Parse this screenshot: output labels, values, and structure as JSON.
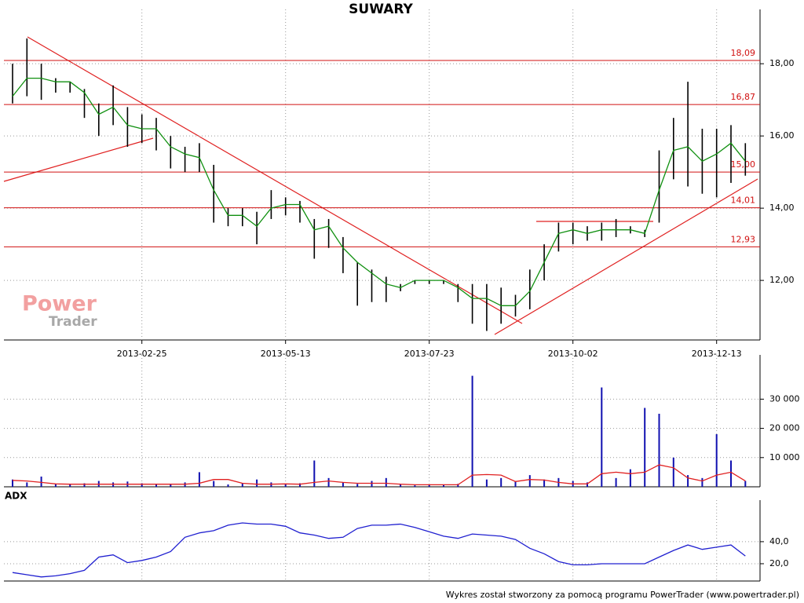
{
  "chart_data": [
    {
      "type": "hilo",
      "title": "SUWARY",
      "categories": [
        null,
        null,
        null,
        null,
        null,
        null,
        null,
        null,
        null,
        "2013-02-25",
        null,
        null,
        null,
        null,
        null,
        null,
        null,
        null,
        null,
        "2013-05-13",
        null,
        null,
        null,
        null,
        null,
        null,
        null,
        null,
        null,
        "2013-07-23",
        null,
        null,
        null,
        null,
        null,
        null,
        null,
        null,
        null,
        "2013-10-02",
        null,
        null,
        null,
        null,
        null,
        null,
        null,
        null,
        null,
        "2013-12-13",
        null,
        null
      ],
      "high": [
        18.0,
        18.7,
        18.0,
        17.6,
        17.5,
        17.3,
        16.9,
        17.4,
        16.8,
        16.6,
        16.5,
        16.0,
        15.7,
        15.8,
        15.2,
        14.0,
        14.0,
        13.9,
        14.5,
        14.3,
        14.2,
        13.7,
        13.7,
        13.2,
        12.5,
        12.3,
        12.1,
        11.9,
        12.0,
        12.0,
        12.0,
        11.9,
        11.9,
        11.9,
        11.8,
        11.6,
        12.3,
        13.0,
        13.6,
        13.6,
        13.5,
        13.6,
        13.7,
        13.5,
        13.4,
        15.6,
        16.5,
        17.5,
        16.2,
        16.2,
        16.3,
        15.8
      ],
      "low": [
        16.9,
        17.1,
        17.0,
        17.2,
        17.2,
        16.5,
        16.0,
        16.3,
        15.7,
        15.8,
        15.6,
        15.1,
        15.0,
        15.0,
        13.6,
        13.5,
        13.5,
        13.0,
        13.7,
        13.8,
        13.6,
        12.6,
        12.9,
        12.2,
        11.3,
        11.4,
        11.4,
        11.7,
        11.9,
        11.9,
        11.9,
        11.4,
        10.8,
        10.6,
        10.8,
        11.0,
        11.2,
        12.0,
        12.8,
        13.0,
        13.1,
        13.1,
        13.2,
        13.3,
        13.2,
        13.6,
        14.8,
        14.6,
        14.4,
        14.3,
        14.7,
        14.9
      ],
      "color": "#000000",
      "ma": {
        "color": "#109010",
        "values": [
          17.1,
          17.6,
          17.6,
          17.5,
          17.5,
          17.2,
          16.6,
          16.8,
          16.3,
          16.2,
          16.2,
          15.7,
          15.5,
          15.4,
          14.5,
          13.8,
          13.8,
          13.5,
          14.0,
          14.1,
          14.1,
          13.4,
          13.5,
          12.9,
          12.5,
          12.2,
          11.9,
          11.8,
          12.0,
          12.0,
          12.0,
          11.8,
          11.5,
          11.5,
          11.3,
          11.3,
          11.7,
          12.5,
          13.3,
          13.4,
          13.3,
          13.4,
          13.4,
          13.4,
          13.3,
          14.5,
          15.6,
          15.7,
          15.3,
          15.5,
          15.8,
          15.3
        ]
      },
      "levels": [
        {
          "value": 18.09,
          "label": "18,09"
        },
        {
          "value": 16.87,
          "label": "16,87"
        },
        {
          "value": 15.0,
          "label": "15,00"
        },
        {
          "value": 14.01,
          "label": "14,01"
        },
        {
          "value": 12.93,
          "label": "12,93"
        }
      ],
      "level_color": "#d01010",
      "ylim": [
        10.35,
        19.33
      ],
      "yticks": [
        {
          "value": 12,
          "label": "12,00"
        },
        {
          "value": 14,
          "label": "14,00"
        },
        {
          "value": 16,
          "label": "16,00"
        },
        {
          "value": 18,
          "label": "18,00"
        }
      ]
    },
    {
      "type": "volume",
      "values": [
        2500,
        1500,
        3500,
        1000,
        800,
        1200,
        2000,
        1500,
        1800,
        1200,
        1000,
        800,
        1500,
        5000,
        2000,
        800,
        1200,
        2500,
        1500,
        1000,
        1200,
        9000,
        3000,
        1500,
        1000,
        2000,
        3000,
        800,
        500,
        600,
        700,
        1000,
        38000,
        2500,
        3000,
        2000,
        4000,
        2500,
        3000,
        2000,
        1500,
        34000,
        3000,
        6000,
        27000,
        25000,
        10000,
        4000,
        3000,
        18000,
        9000,
        2000
      ],
      "color": "#1010b0",
      "ma": {
        "color": "#e02020",
        "values": [
          2200,
          2000,
          1500,
          1000,
          900,
          900,
          900,
          900,
          900,
          900,
          900,
          900,
          900,
          1200,
          2500,
          2500,
          1200,
          900,
          900,
          1000,
          900,
          1500,
          2000,
          1500,
          1200,
          1200,
          1200,
          900,
          700,
          700,
          700,
          700,
          4000,
          4200,
          4000,
          1800,
          2500,
          2300,
          1500,
          1000,
          1000,
          4500,
          5000,
          4500,
          5000,
          7500,
          6500,
          3000,
          2000,
          4000,
          5000,
          2000
        ]
      },
      "ylim": [
        0,
        43000
      ],
      "yticks": [
        {
          "value": 10000,
          "label": "10 000"
        },
        {
          "value": 20000,
          "label": "20 000"
        },
        {
          "value": 30000,
          "label": "30 000"
        }
      ]
    },
    {
      "type": "line",
      "title": "ADX",
      "values": [
        12,
        10,
        8,
        9,
        11,
        14,
        26,
        28,
        21,
        23,
        26,
        31,
        44,
        48,
        50,
        55,
        57,
        56,
        56,
        54,
        48,
        46,
        43,
        44,
        52,
        55,
        55,
        56,
        53,
        49,
        45,
        43,
        47,
        46,
        45,
        42,
        34,
        29,
        22,
        19,
        19,
        20,
        20,
        20,
        20,
        26,
        32,
        37,
        33,
        35,
        37,
        27
      ],
      "color": "#2020d0",
      "ylim": [
        4.3,
        72
      ],
      "yticks": [
        {
          "value": 20,
          "label": "20,0"
        },
        {
          "value": 40,
          "label": "40,0"
        }
      ]
    }
  ],
  "logo": {
    "line1": "Power",
    "line2": "Trader"
  },
  "footer": "Wykres został stworzony za pomocą programu PowerTrader (www.powertrader.pl)"
}
